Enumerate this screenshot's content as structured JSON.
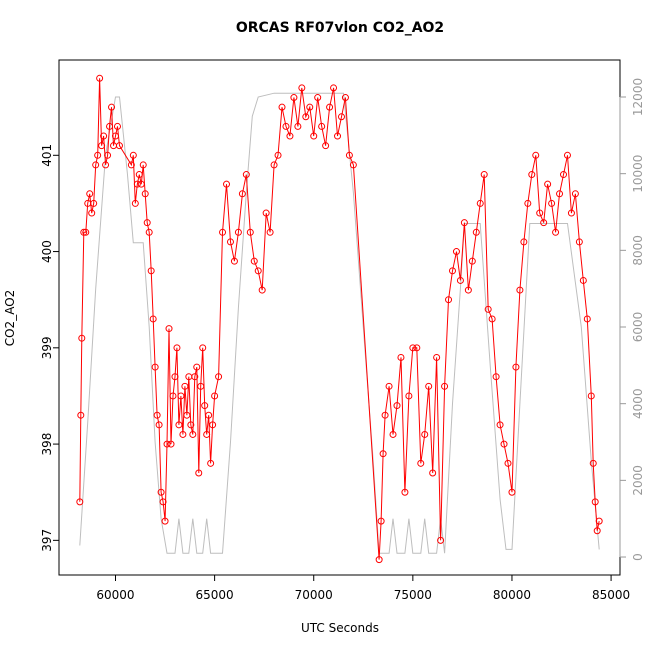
{
  "chart_data": {
    "type": "line",
    "title": "ORCAS RF07vlon CO2_AO2",
    "x_label": "UTC Seconds",
    "y_label": "CO2_AO2",
    "xlim": [
      57150,
      85450
    ],
    "ylim": [
      396.64,
      401.99
    ],
    "y2lim": [
      -469,
      12965
    ],
    "xticks": [
      60000,
      65000,
      70000,
      75000,
      80000,
      85000
    ],
    "yticks": [
      397,
      398,
      399,
      400,
      401
    ],
    "y2ticks": [
      0,
      2000,
      4000,
      6000,
      8000,
      10000,
      12000
    ],
    "series": [
      {
        "color": "#ff0000",
        "markers": true,
        "x": [
          58200,
          58250,
          58300,
          58400,
          58500,
          58600,
          58700,
          58800,
          58900,
          59000,
          59100,
          59200,
          59300,
          59400,
          59500,
          59600,
          59700,
          59800,
          59900,
          60000,
          60100,
          60200,
          60800,
          60900,
          61000,
          61100,
          61200,
          61300,
          61400,
          61500,
          61600,
          61700,
          61800,
          61900,
          62000,
          62100,
          62200,
          62300,
          62400,
          62500,
          62600,
          62700,
          62800,
          62900,
          63000,
          63100,
          63200,
          63300,
          63400,
          63500,
          63600,
          63700,
          63800,
          63900,
          64000,
          64100,
          64200,
          64300,
          64400,
          64500,
          64600,
          64700,
          64800,
          64900,
          65000,
          65200,
          65400,
          65600,
          65800,
          66000,
          66200,
          66400,
          66600,
          66800,
          67000,
          67200,
          67400,
          67600,
          67800,
          68000,
          68200,
          68400,
          68600,
          68800,
          69000,
          69200,
          69400,
          69600,
          69800,
          70000,
          70200,
          70400,
          70600,
          70800,
          71000,
          71200,
          71400,
          71600,
          71800,
          72000,
          73300,
          73400,
          73500,
          73600,
          73800,
          74000,
          74200,
          74400,
          74600,
          74800,
          75000,
          75200,
          75400,
          75600,
          75800,
          76000,
          76200,
          76400,
          76600,
          76800,
          77000,
          77200,
          77400,
          77600,
          77800,
          78000,
          78200,
          78400,
          78600,
          78800,
          79000,
          79200,
          79400,
          79600,
          79800,
          80000,
          80200,
          80400,
          80600,
          80800,
          81000,
          81200,
          81400,
          81600,
          81800,
          82000,
          82200,
          82400,
          82600,
          82800,
          83000,
          83200,
          83400,
          83600,
          83800,
          84000,
          84100,
          84200,
          84300,
          84400
        ],
        "values": [
          397.4,
          398.3,
          399.1,
          400.2,
          400.2,
          400.5,
          400.6,
          400.4,
          400.5,
          400.9,
          401.0,
          401.8,
          401.1,
          401.2,
          400.9,
          401.0,
          401.3,
          401.5,
          401.1,
          401.2,
          401.3,
          401.1,
          400.9,
          401.0,
          400.5,
          400.7,
          400.8,
          400.7,
          400.9,
          400.6,
          400.3,
          400.2,
          399.8,
          399.3,
          398.8,
          398.3,
          398.2,
          397.5,
          397.4,
          397.2,
          398.0,
          399.2,
          398.0,
          398.5,
          398.7,
          399.0,
          398.2,
          398.5,
          398.1,
          398.6,
          398.3,
          398.7,
          398.2,
          398.1,
          398.7,
          398.8,
          397.7,
          398.6,
          399.0,
          398.4,
          398.1,
          398.3,
          397.8,
          398.2,
          398.5,
          398.7,
          400.2,
          400.7,
          400.1,
          399.9,
          400.2,
          400.6,
          400.8,
          400.2,
          399.9,
          399.8,
          399.6,
          400.4,
          400.2,
          400.9,
          401.0,
          401.5,
          401.3,
          401.2,
          401.6,
          401.3,
          401.7,
          401.4,
          401.5,
          401.2,
          401.6,
          401.3,
          401.1,
          401.5,
          401.7,
          401.2,
          401.4,
          401.6,
          401.0,
          400.9,
          396.8,
          397.2,
          397.9,
          398.3,
          398.6,
          398.1,
          398.4,
          398.9,
          397.5,
          398.5,
          399.0,
          399.0,
          397.8,
          398.1,
          398.6,
          397.7,
          398.9,
          397.0,
          398.6,
          399.5,
          399.8,
          400.0,
          399.7,
          400.3,
          399.6,
          399.9,
          400.2,
          400.5,
          400.8,
          399.4,
          399.3,
          398.7,
          398.2,
          398.0,
          397.8,
          397.5,
          398.8,
          399.6,
          400.1,
          400.5,
          400.8,
          401.0,
          400.4,
          400.3,
          400.7,
          400.5,
          400.2,
          400.6,
          400.8,
          401.0,
          400.4,
          400.6,
          400.1,
          399.7,
          399.3,
          398.5,
          397.8,
          397.4,
          397.1,
          397.2
        ]
      },
      {
        "color": "#bebebe",
        "axis": "y2",
        "markers": false,
        "x": [
          58200,
          58600,
          59000,
          59500,
          60000,
          60200,
          60600,
          60900,
          61400,
          61700,
          62000,
          62300,
          62600,
          63000,
          63200,
          63400,
          63700,
          63900,
          64100,
          64400,
          64600,
          64800,
          65400,
          65800,
          66200,
          66600,
          66900,
          67200,
          68000,
          71500,
          72000,
          72500,
          73000,
          73300,
          73800,
          74000,
          74200,
          74600,
          74800,
          75000,
          75400,
          75600,
          75800,
          76200,
          76400,
          76600,
          77000,
          77400,
          77600,
          78400,
          78900,
          79400,
          79700,
          80000,
          80400,
          80900,
          82800,
          83500,
          84000,
          84400
        ],
        "values": [
          300,
          3500,
          7000,
          10500,
          12000,
          12000,
          10000,
          8200,
          8200,
          6000,
          3000,
          1000,
          100,
          100,
          1000,
          100,
          100,
          1000,
          100,
          100,
          1000,
          100,
          100,
          3000,
          6500,
          9500,
          11500,
          12000,
          12100,
          12100,
          9500,
          6000,
          2500,
          100,
          100,
          1000,
          100,
          100,
          1000,
          100,
          100,
          1000,
          100,
          100,
          1000,
          100,
          4000,
          7000,
          8700,
          8700,
          5000,
          1500,
          200,
          200,
          4000,
          8700,
          8700,
          6000,
          2500,
          200
        ]
      }
    ]
  }
}
